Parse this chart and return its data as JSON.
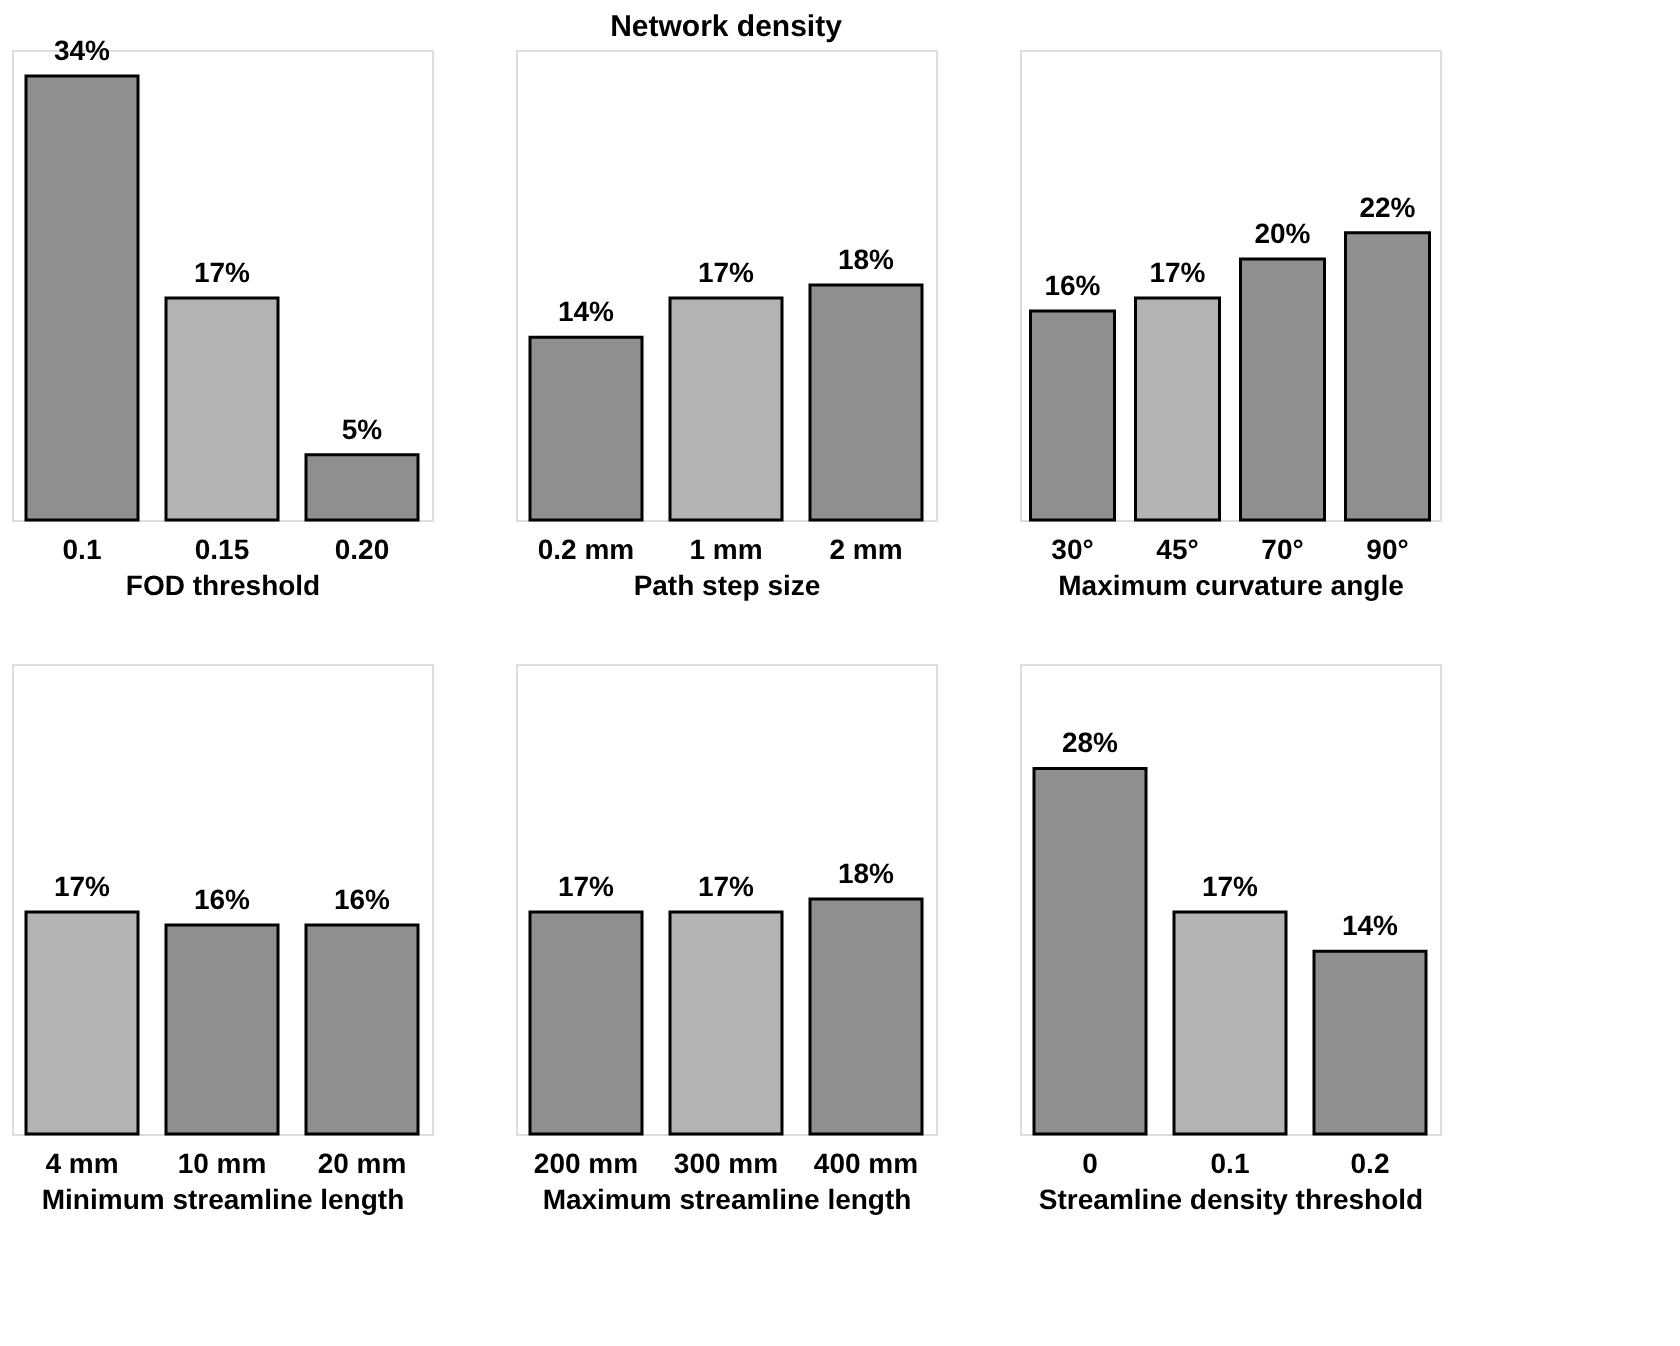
{
  "chart_data": [
    {
      "type": "bar",
      "categories": [
        "0.1",
        "0.15",
        "0.20"
      ],
      "values": [
        34,
        17,
        5
      ],
      "colors": [
        "#8f8f8f",
        "#b3b3b3",
        "#8f8f8f"
      ],
      "value_labels": [
        "34%",
        "17%",
        "5%"
      ],
      "xlabel": "FOD threshold",
      "ylim": [
        0,
        36
      ],
      "tick_labels": "x",
      "grid": false
    },
    {
      "type": "bar",
      "title": "Network density",
      "categories": [
        "0.2 mm",
        "1 mm",
        "2 mm"
      ],
      "values": [
        14,
        17,
        18
      ],
      "colors": [
        "#8f8f8f",
        "#b3b3b3",
        "#8f8f8f"
      ],
      "value_labels": [
        "14%",
        "17%",
        "18%"
      ],
      "xlabel": "Path step size",
      "ylim": [
        0,
        36
      ],
      "tick_labels": "x",
      "grid": false
    },
    {
      "type": "bar",
      "categories": [
        "30°",
        "45°",
        "70°",
        "90°"
      ],
      "values": [
        16,
        17,
        20,
        22
      ],
      "colors": [
        "#8f8f8f",
        "#b3b3b3",
        "#8f8f8f",
        "#8f8f8f"
      ],
      "value_labels": [
        "16%",
        "17%",
        "20%",
        "22%"
      ],
      "xlabel": "Maximum curvature angle",
      "ylim": [
        0,
        36
      ],
      "tick_labels": "x",
      "grid": false
    },
    {
      "type": "bar",
      "categories": [
        "4 mm",
        "10 mm",
        "20 mm"
      ],
      "values": [
        17,
        16,
        16
      ],
      "colors": [
        "#b3b3b3",
        "#8f8f8f",
        "#8f8f8f"
      ],
      "value_labels": [
        "17%",
        "16%",
        "16%"
      ],
      "xlabel": "Minimum streamline length",
      "ylim": [
        0,
        36
      ],
      "tick_labels": "x",
      "grid": false
    },
    {
      "type": "bar",
      "categories": [
        "200 mm",
        "300 mm",
        "400 mm"
      ],
      "values": [
        17,
        17,
        18
      ],
      "colors": [
        "#8f8f8f",
        "#b3b3b3",
        "#8f8f8f"
      ],
      "value_labels": [
        "17%",
        "17%",
        "18%"
      ],
      "xlabel": "Maximum streamline length",
      "ylim": [
        0,
        36
      ],
      "tick_labels": "x",
      "grid": false
    },
    {
      "type": "bar",
      "categories": [
        "0",
        "0.1",
        "0.2"
      ],
      "values": [
        28,
        17,
        14
      ],
      "colors": [
        "#8f8f8f",
        "#b3b3b3",
        "#8f8f8f"
      ],
      "value_labels": [
        "28%",
        "17%",
        "14%"
      ],
      "xlabel": "Streamline density threshold",
      "ylim": [
        0,
        36
      ],
      "tick_labels": "x",
      "grid": false
    }
  ]
}
